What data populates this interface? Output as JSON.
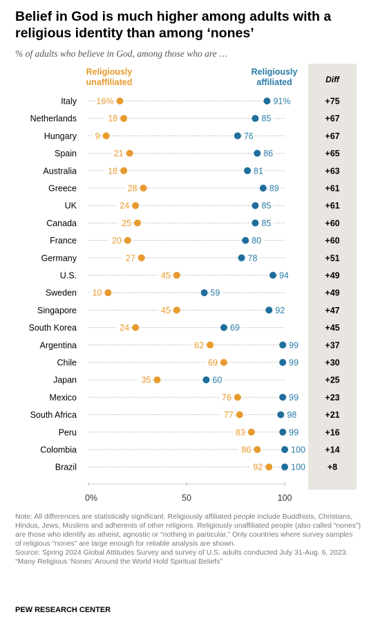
{
  "title": "Belief in God is much higher among adults with a religious identity than among ‘nones’",
  "subtitle": "% of adults who believe in God, among those who are …",
  "legend": {
    "unaffiliated": "Religiously unaffiliated",
    "affiliated": "Religiously affiliated",
    "diff": "Diff"
  },
  "colors": {
    "unaffiliated": "#e89a2e",
    "affiliated": "#1f6e9c",
    "affiliated_label": "#2a7ba6",
    "diff_band": "#e9e6e2"
  },
  "chart_data": {
    "type": "dot-plot",
    "title": "Belief in God is much higher among adults with a religious identity than among ‘nones’",
    "subtitle": "% of adults who believe in God, among those who are …",
    "xlim": [
      0,
      100
    ],
    "x_ticks": [
      "0%",
      "50",
      "100"
    ],
    "categories": [
      "Italy",
      "Netherlands",
      "Hungary",
      "Spain",
      "Australia",
      "Greece",
      "UK",
      "Canada",
      "France",
      "Germany",
      "U.S.",
      "Sweden",
      "Singapore",
      "South Korea",
      "Argentina",
      "Chile",
      "Japan",
      "Mexico",
      "South Africa",
      "Peru",
      "Colombia",
      "Brazil"
    ],
    "series": [
      {
        "name": "Religiously unaffiliated",
        "values": [
          16,
          18,
          9,
          21,
          18,
          28,
          24,
          25,
          20,
          27,
          45,
          10,
          45,
          24,
          62,
          69,
          35,
          76,
          77,
          83,
          86,
          92
        ],
        "labels": [
          "16%",
          "18",
          "9",
          "21",
          "18",
          "28",
          "24",
          "25",
          "20",
          "27",
          "45",
          "10",
          "45",
          "24",
          "62",
          "69",
          "35",
          "76",
          "77",
          "83",
          "86",
          "92"
        ]
      },
      {
        "name": "Religiously affiliated",
        "values": [
          91,
          85,
          76,
          86,
          81,
          89,
          85,
          85,
          80,
          78,
          94,
          59,
          92,
          69,
          99,
          99,
          60,
          99,
          98,
          99,
          100,
          100
        ],
        "labels": [
          "91%",
          "85",
          "76",
          "86",
          "81",
          "89",
          "85",
          "85",
          "80",
          "78",
          "94",
          "59",
          "92",
          "69",
          "99",
          "99",
          "60",
          "99",
          "98",
          "99",
          "100",
          "100"
        ]
      }
    ],
    "diff": [
      "+75",
      "+67",
      "+67",
      "+65",
      "+63",
      "+61",
      "+61",
      "+60",
      "+60",
      "+51",
      "+49",
      "+49",
      "+47",
      "+45",
      "+37",
      "+30",
      "+25",
      "+23",
      "+21",
      "+16",
      "+14",
      "+8"
    ]
  },
  "notes": [
    "Note: All differences are statistically significant. Religiously affiliated people include Buddhists, Christians, Hindus, Jews, Muslims and adherents of other religions. Religiously unaffiliated people (also called “nones”) are those who identify as atheist, agnostic or “nothing in particular.” Only countries where survey samples of religious “nones” are large enough for reliable analysis are shown.",
    "Source: Spring 2024 Global Attitudes Survey and survey of U.S. adults conducted July 31-Aug. 6, 2023.",
    "“Many Religious ‘Nones’ Around the World Hold Spiritual Beliefs”"
  ],
  "footer": "PEW RESEARCH CENTER"
}
